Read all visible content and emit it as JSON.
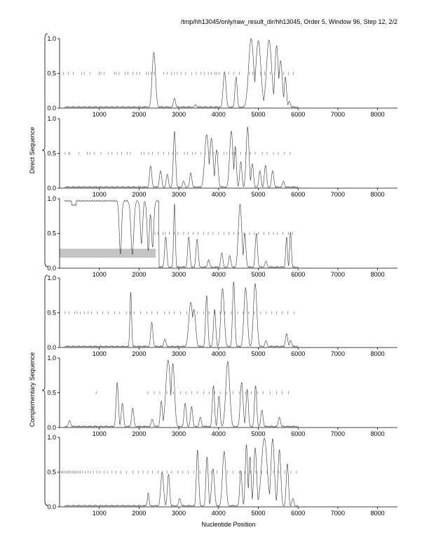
{
  "header": {
    "title": "/tmp/hh13045/only/raw_result_dir/hh13045, Order 5, Window 96, Step 12, 2/2"
  },
  "groups": {
    "direct_label": "Direct Sequence",
    "complementary_label": "Complementary Sequence"
  },
  "chart_data": {
    "type": "line",
    "xlabel": "Nucleotide Position",
    "xlim": [
      0,
      8500
    ],
    "ylim": [
      0,
      1
    ],
    "x_ticks": [
      1000,
      2000,
      3000,
      4000,
      5000,
      6000,
      7000,
      8000
    ],
    "y_ticks": [
      0.0,
      0.5,
      1.0
    ],
    "panels": [
      {
        "group": "direct",
        "ticks_at_half": [
          100,
          220,
          340,
          560,
          620,
          760,
          1000,
          1040,
          1120,
          1380,
          1430,
          1500,
          1650,
          1720,
          1840,
          1940,
          2020,
          2180,
          2230,
          2300,
          2380,
          2620,
          2710,
          2810,
          2890,
          2960,
          3060,
          3170,
          3320,
          3440,
          3560,
          3640,
          3740,
          3820,
          3900,
          3950,
          4020,
          4140,
          4260,
          4380,
          4520,
          4780,
          4860,
          4920,
          5060,
          5160,
          5300,
          5410,
          5520,
          5640,
          5760,
          5880
        ],
        "peaks": [
          [
            2370,
            0.8,
            60
          ],
          [
            2890,
            0.14,
            40
          ],
          [
            3420,
            0.05,
            40
          ],
          [
            4150,
            0.52,
            50
          ],
          [
            4440,
            0.45,
            40
          ],
          [
            4820,
            1.0,
            90
          ],
          [
            5000,
            0.97,
            90
          ],
          [
            5270,
            0.98,
            90
          ],
          [
            5460,
            0.9,
            60
          ],
          [
            5560,
            0.68,
            60
          ],
          [
            5680,
            0.45,
            40
          ],
          [
            5780,
            0.1,
            40
          ]
        ],
        "drops": []
      },
      {
        "group": "direct",
        "ticks_at_half": [
          140,
          230,
          260,
          480,
          700,
          760,
          880,
          1040,
          1220,
          1320,
          1460,
          1560,
          1700,
          1780,
          2060,
          2120,
          2240,
          2340,
          2480,
          2620,
          2740,
          2840,
          2960,
          3140,
          3220,
          3340,
          3420,
          3560,
          3660,
          3780,
          3880,
          4000,
          4140,
          4200,
          4340,
          4420,
          4560,
          4680,
          4800,
          4920,
          5100,
          5220,
          5380,
          5500,
          5660,
          5800
        ],
        "peaks": [
          [
            2290,
            0.32,
            40
          ],
          [
            2540,
            0.25,
            40
          ],
          [
            2710,
            0.2,
            40
          ],
          [
            2890,
            0.82,
            40
          ],
          [
            3120,
            0.1,
            40
          ],
          [
            3300,
            0.22,
            40
          ],
          [
            3700,
            0.77,
            70
          ],
          [
            3820,
            0.72,
            60
          ],
          [
            3950,
            0.55,
            50
          ],
          [
            4320,
            0.82,
            60
          ],
          [
            4420,
            0.6,
            40
          ],
          [
            4560,
            0.38,
            40
          ],
          [
            4730,
            0.88,
            50
          ],
          [
            4850,
            0.35,
            40
          ],
          [
            5040,
            0.25,
            40
          ],
          [
            5180,
            0.33,
            40
          ],
          [
            5360,
            0.25,
            40
          ],
          [
            5630,
            0.1,
            40
          ]
        ],
        "drops": []
      },
      {
        "group": "direct",
        "ticks_at_half": [
          2400,
          2480,
          2600,
          2660,
          2760,
          2880,
          2980,
          3120,
          3240,
          3360,
          3480,
          3620,
          3740,
          3860,
          4000,
          4140,
          4260,
          4380,
          4500,
          4640,
          4780,
          4900,
          5000,
          5140,
          5260,
          5380,
          5480,
          5620,
          5760,
          5860
        ],
        "peaks": [
          [
            2670,
            0.45,
            40
          ],
          [
            2890,
            0.93,
            30
          ],
          [
            3250,
            0.45,
            40
          ],
          [
            3460,
            0.42,
            40
          ],
          [
            3750,
            0.12,
            40
          ],
          [
            4080,
            0.22,
            40
          ],
          [
            4280,
            0.18,
            40
          ],
          [
            4540,
            0.92,
            60
          ],
          [
            4660,
            0.5,
            40
          ],
          [
            4950,
            0.5,
            40
          ],
          [
            5190,
            0.1,
            40
          ],
          [
            5710,
            0.45,
            30
          ],
          [
            5810,
            0.52,
            30
          ]
        ],
        "drops": [
          [
            1530,
            0.2,
            40
          ],
          [
            1830,
            0.2,
            50
          ],
          [
            2060,
            0.35,
            40
          ],
          [
            2230,
            0.25,
            40
          ],
          [
            2340,
            0.3,
            40
          ]
        ],
        "plateau_until": 2500,
        "band": [
          0,
          2420,
          0.15,
          0.28
        ]
      },
      {
        "group": "complementary",
        "ticks_at_half": [
          140,
          240,
          380,
          440,
          520,
          620,
          720,
          800,
          950,
          1080,
          1230,
          1380,
          1500,
          1680,
          1780,
          1880,
          2040,
          2200,
          2320,
          2460,
          2640,
          2760,
          2880,
          3040,
          3200,
          3340,
          3460,
          3620,
          3760,
          3900,
          4040,
          4160,
          4320,
          4480,
          4620,
          4760,
          4900,
          5060,
          5200,
          5340,
          5460,
          5600,
          5740,
          5900
        ],
        "peaks": [
          [
            1790,
            0.8,
            30
          ],
          [
            2320,
            0.36,
            40
          ],
          [
            2650,
            0.12,
            40
          ],
          [
            3300,
            0.65,
            70
          ],
          [
            3380,
            0.55,
            60
          ],
          [
            3700,
            0.75,
            40
          ],
          [
            3900,
            0.55,
            40
          ],
          [
            4100,
            0.85,
            60
          ],
          [
            4380,
            0.95,
            40
          ],
          [
            4680,
            0.86,
            60
          ],
          [
            4920,
            0.92,
            60
          ],
          [
            5190,
            0.1,
            40
          ],
          [
            5710,
            0.2,
            40
          ],
          [
            5810,
            0.1,
            40
          ]
        ],
        "drops": []
      },
      {
        "group": "complementary",
        "ticks_at_half": [
          920,
          2220,
          2380,
          2520,
          2700,
          2860,
          3040,
          3180,
          3320,
          3460,
          3620,
          3760,
          3900,
          4040,
          4200,
          4360,
          4520,
          4680,
          4820,
          4980,
          5120,
          5300,
          5460,
          5600,
          5760
        ],
        "peaks": [
          [
            250,
            0.1,
            40
          ],
          [
            1450,
            0.65,
            40
          ],
          [
            1580,
            0.35,
            40
          ],
          [
            1840,
            0.28,
            40
          ],
          [
            2330,
            0.12,
            40
          ],
          [
            2560,
            0.38,
            40
          ],
          [
            2730,
            0.97,
            80
          ],
          [
            2850,
            0.92,
            60
          ],
          [
            3160,
            0.35,
            40
          ],
          [
            3320,
            0.3,
            40
          ],
          [
            3540,
            0.15,
            40
          ],
          [
            3870,
            0.6,
            40
          ],
          [
            4010,
            0.45,
            40
          ],
          [
            4230,
            0.95,
            70
          ],
          [
            4580,
            0.65,
            50
          ],
          [
            4720,
            0.55,
            40
          ],
          [
            4930,
            0.6,
            40
          ],
          [
            5090,
            0.25,
            40
          ],
          [
            5530,
            0.15,
            40
          ]
        ],
        "drops": []
      },
      {
        "group": "complementary",
        "ticks_at_half": [
          40,
          80,
          120,
          160,
          200,
          240,
          280,
          320,
          360,
          400,
          440,
          480,
          520,
          580,
          640,
          720,
          780,
          860,
          940,
          1020,
          1120,
          1200,
          1320,
          1420,
          1540,
          1680,
          1840,
          1980,
          2100,
          2220,
          2340,
          2480,
          2580,
          2700,
          2820,
          2980,
          3100,
          3240,
          3380,
          3540,
          3680,
          3820,
          3960,
          4100,
          4220,
          4360,
          4520,
          4660,
          4800,
          4940,
          5080,
          5220,
          5380,
          5520,
          5660,
          5820,
          5960
        ],
        "peaks": [
          [
            2230,
            0.2,
            30
          ],
          [
            2580,
            0.5,
            50
          ],
          [
            2740,
            0.47,
            40
          ],
          [
            3020,
            0.12,
            40
          ],
          [
            3470,
            0.82,
            40
          ],
          [
            3710,
            0.72,
            40
          ],
          [
            3860,
            0.55,
            50
          ],
          [
            4140,
            0.8,
            60
          ],
          [
            4560,
            0.52,
            40
          ],
          [
            4700,
            0.9,
            40
          ],
          [
            4790,
            0.72,
            40
          ],
          [
            4920,
            0.85,
            50
          ],
          [
            5150,
            0.99,
            100
          ],
          [
            5360,
            0.98,
            60
          ],
          [
            5530,
            0.82,
            50
          ],
          [
            5730,
            0.62,
            40
          ],
          [
            5870,
            0.12,
            40
          ]
        ],
        "drops": []
      }
    ]
  }
}
